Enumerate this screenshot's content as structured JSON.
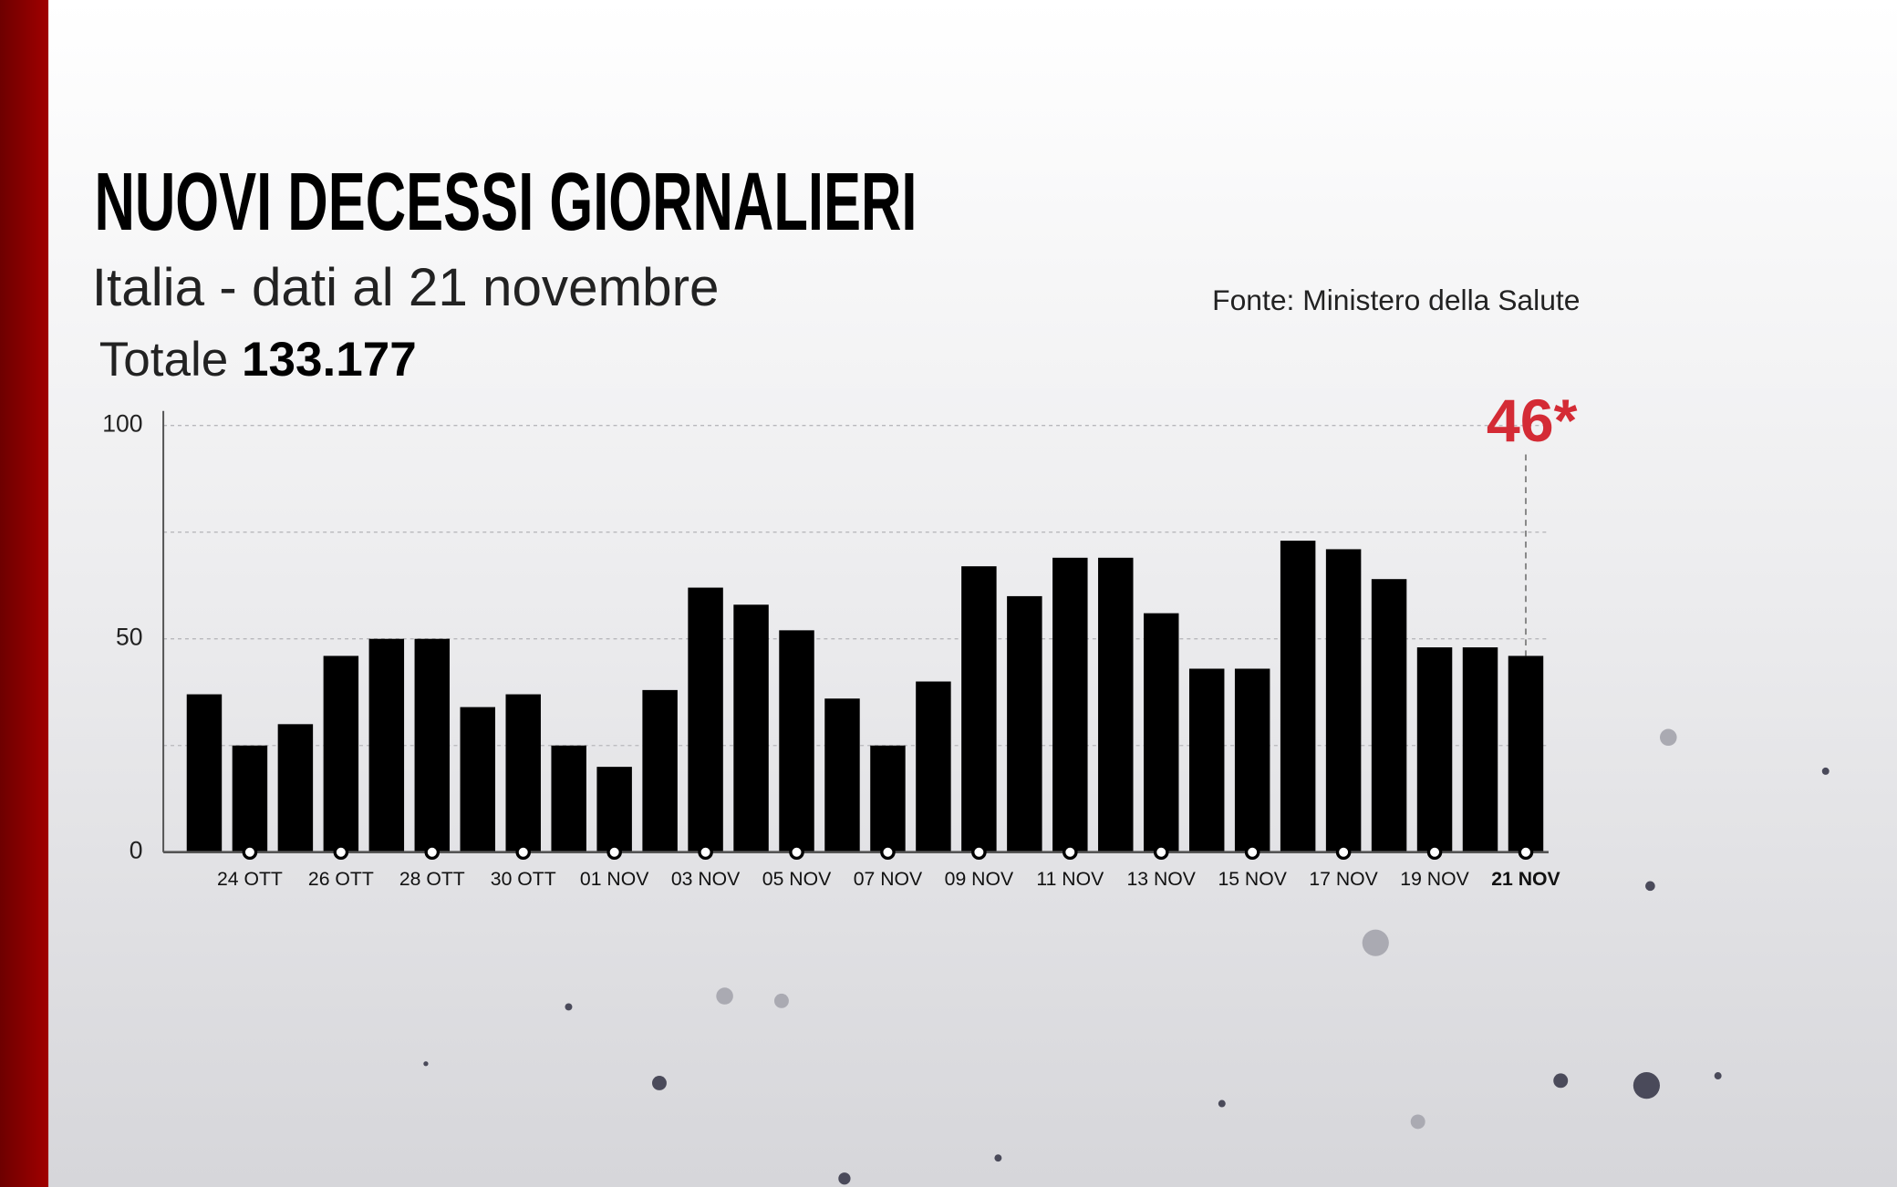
{
  "chart_data": {
    "type": "bar",
    "title": "NUOVI DECESSI GIORNALIERI",
    "subtitle": "Italia - dati al 21 novembre",
    "source": "Fonte: Ministero della Salute",
    "total": {
      "label": "Totale",
      "value": "133.177"
    },
    "categories": [
      null,
      "24 OTT",
      null,
      "26 OTT",
      null,
      "28 OTT",
      null,
      "30 OTT",
      null,
      "01 NOV",
      null,
      "03 NOV",
      null,
      "05 NOV",
      null,
      "07 NOV",
      null,
      "09 NOV",
      null,
      "11 NOV",
      null,
      "13 NOV",
      null,
      "15 NOV",
      null,
      "17 NOV",
      null,
      "19 NOV",
      null,
      "21 NOV"
    ],
    "values": [
      37,
      25,
      30,
      46,
      50,
      50,
      34,
      37,
      25,
      20,
      38,
      62,
      58,
      52,
      36,
      25,
      40,
      67,
      60,
      69,
      69,
      56,
      43,
      43,
      73,
      71,
      64,
      48,
      48,
      46
    ],
    "value_labels": [
      null,
      null,
      null,
      null,
      null,
      null,
      null,
      null,
      null,
      null,
      null,
      null,
      null,
      null,
      null,
      null,
      null,
      null,
      null,
      null,
      null,
      null,
      null,
      null,
      null,
      null,
      null,
      null,
      null,
      "46*"
    ],
    "color": "#000000",
    "highlight_color": "#d42b35",
    "ylim": [
      0,
      100
    ],
    "yticks": [
      0,
      50,
      100
    ],
    "minor_yticks": [
      25,
      75
    ],
    "grid": true
  }
}
